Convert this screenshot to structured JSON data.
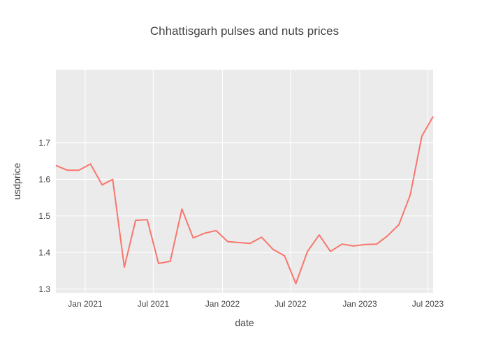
{
  "chart_data": {
    "type": "line",
    "title": "Chhattisgarh pulses and nuts prices",
    "xlabel": "date",
    "ylabel": "usdprice",
    "x_ticks": [
      "Jan 2021",
      "Jul 2021",
      "Jan 2022",
      "Jul 2022",
      "Jan 2023",
      "Jul 2023"
    ],
    "y_ticks": [
      "1.3",
      "1.4",
      "1.5",
      "1.6",
      "1.7"
    ],
    "x_range": [
      "2020-10-15",
      "2023-07-15"
    ],
    "ylim": [
      1.29,
      1.9
    ],
    "grid": true,
    "legend": "none",
    "colors": {
      "line": "#f8766d",
      "plot_bg": "#ebebeb",
      "grid": "#ffffff",
      "text": "#444444"
    },
    "series": [
      {
        "x": [
          "2020-10-15",
          "2020-11-15",
          "2020-12-15",
          "2021-01-15",
          "2021-02-15",
          "2021-03-15",
          "2021-04-15",
          "2021-05-15",
          "2021-06-15",
          "2021-07-15",
          "2021-08-15",
          "2021-09-15",
          "2021-10-15",
          "2021-11-15",
          "2021-12-15",
          "2022-01-15",
          "2022-03-15",
          "2022-04-15",
          "2022-05-15",
          "2022-06-15",
          "2022-07-15",
          "2022-08-15",
          "2022-09-15",
          "2022-10-15",
          "2022-11-15",
          "2022-12-15",
          "2023-01-15",
          "2023-02-15",
          "2023-03-15",
          "2023-04-15",
          "2023-05-15",
          "2023-06-15",
          "2023-07-15"
        ],
        "y": [
          1.638,
          1.625,
          1.625,
          1.642,
          1.585,
          1.6,
          1.36,
          1.488,
          1.49,
          1.37,
          1.376,
          1.519,
          1.44,
          1.453,
          1.46,
          1.43,
          1.425,
          1.442,
          1.409,
          1.391,
          1.315,
          1.403,
          1.448,
          1.403,
          1.423,
          1.418,
          1.422,
          1.423,
          1.445,
          1.476,
          1.557,
          1.718,
          1.772
        ]
      }
    ]
  }
}
